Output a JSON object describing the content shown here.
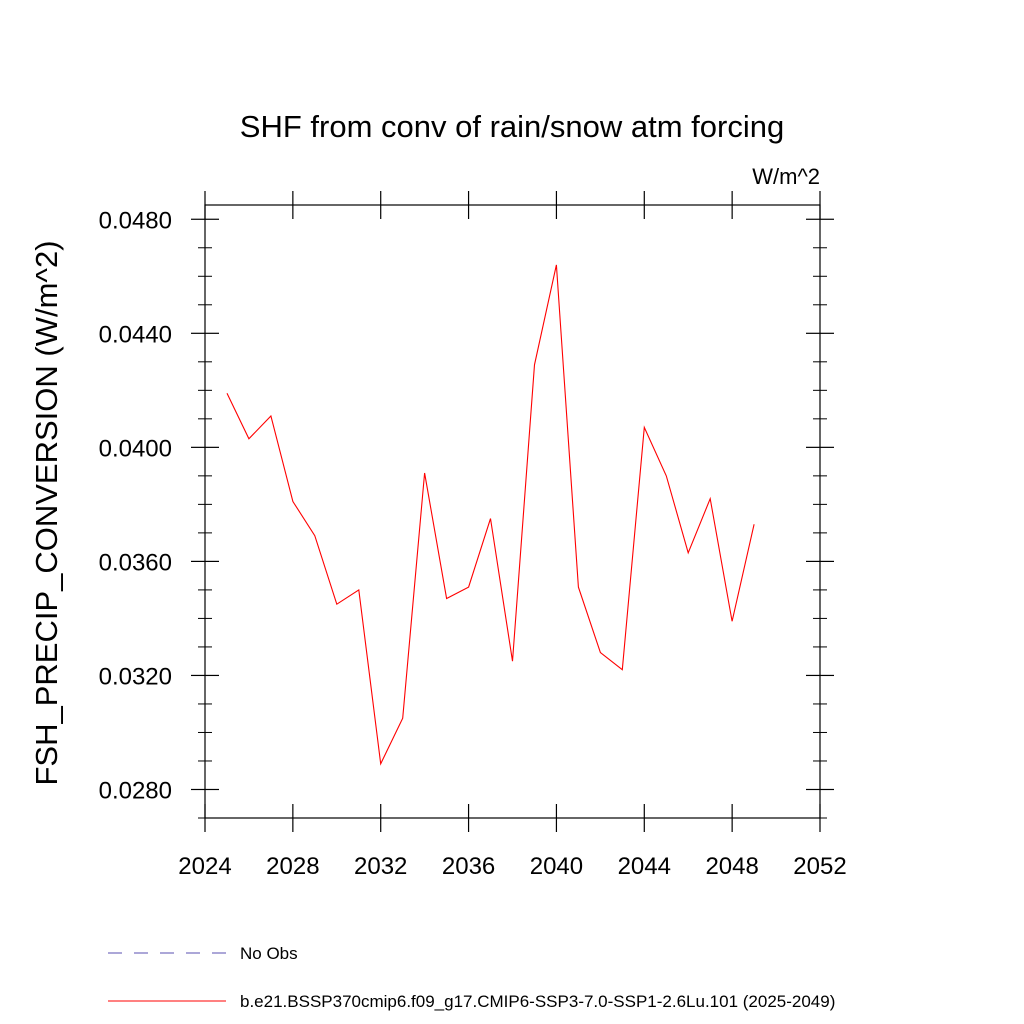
{
  "chart_data": {
    "type": "line",
    "title": "SHF from conv of rain/snow atm forcing",
    "units_label": "W/m^2",
    "xlabel": "",
    "ylabel": "FSH_PRECIP_CONVERSION  (W/m^2)",
    "xlim": [
      2024,
      2052
    ],
    "ylim": [
      0.027,
      0.0485
    ],
    "x_ticks": [
      2024,
      2028,
      2032,
      2036,
      2040,
      2044,
      2048,
      2052
    ],
    "x_tick_labels": [
      "2024",
      "2028",
      "2032",
      "2036",
      "2040",
      "2044",
      "2048",
      "2052"
    ],
    "y_ticks": [
      0.028,
      0.032,
      0.036,
      0.04,
      0.044,
      0.048
    ],
    "y_tick_labels": [
      "0.0280",
      "0.0320",
      "0.0360",
      "0.0400",
      "0.0440",
      "0.0480"
    ],
    "grid": false,
    "legend_placement": "bottom",
    "series": [
      {
        "name": "b.e21.BSSP370cmip6.f09_g17.CMIP6-SSP3-7.0-SSP1-2.6Lu.101 (2025-2049)",
        "color": "#ff0000",
        "style": "solid",
        "x": [
          2025,
          2026,
          2027,
          2028,
          2029,
          2030,
          2031,
          2032,
          2033,
          2034,
          2035,
          2036,
          2037,
          2038,
          2039,
          2040,
          2041,
          2042,
          2043,
          2044,
          2045,
          2046,
          2047,
          2048,
          2049
        ],
        "values": [
          0.0419,
          0.0403,
          0.0411,
          0.0381,
          0.0369,
          0.0345,
          0.035,
          0.0289,
          0.0305,
          0.0391,
          0.0347,
          0.0351,
          0.0375,
          0.0325,
          0.0429,
          0.0464,
          0.0351,
          0.0328,
          0.0322,
          0.0407,
          0.039,
          0.0363,
          0.0382,
          0.0339,
          0.0373
        ]
      }
    ],
    "legend": [
      {
        "label": "No Obs",
        "color": "#5a4fb0",
        "style": "dashed"
      },
      {
        "label": "b.e21.BSSP370cmip6.f09_g17.CMIP6-SSP3-7.0-SSP1-2.6Lu.101 (2025-2049)",
        "color": "#ff0000",
        "style": "solid"
      }
    ]
  }
}
